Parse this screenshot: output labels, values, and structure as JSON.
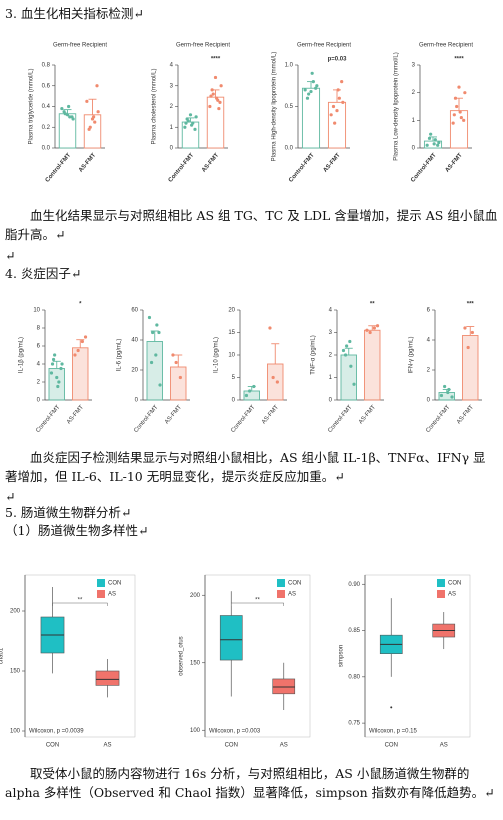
{
  "document": {
    "blocks": [
      "3. 血生化相关指标检测↵",
      "血生化结果显示与对照组相比 AS 组 TG、TC 及 LDL 含量增加，提示 AS 组小鼠血脂升高。↵",
      "↵",
      "4. 炎症因子↵",
      "血炎症因子检测结果显示与对照组小鼠相比，AS 组小鼠 IL-1β、TNFα、IFNγ 显著增加，但 IL-6、IL-10 无明显变化，提示炎症反应加重。↵",
      "↵",
      "5. 肠道微生物群分析↵",
      "（1）肠道微生物多样性↵",
      "取受体小鼠的肠内容物进行 16s 分析，与对照组相比，AS 小鼠肠道微生物群的 alpha 多样性（Observed 和 Chaol 指数）显著降低，simpson 指数亦有降低趋势。↵"
    ]
  },
  "chart_data": [
    {
      "type": "bar",
      "title": "Germ-free Recipient",
      "ylabel": "Plasma triglyceride (mmol/L)",
      "categories": [
        "Control-FMT",
        "AS-FMT"
      ],
      "colors": [
        "#5fb8a0",
        "#f08a6e"
      ],
      "values": [
        0.33,
        0.32
      ],
      "errors": [
        0.04,
        0.15
      ],
      "points": [
        [
          0.38,
          0.3,
          0.33,
          0.28,
          0.4,
          0.35,
          0.3,
          0.32
        ],
        [
          0.45,
          0.25,
          0.2,
          0.35,
          0.3,
          0.18,
          0.6,
          0.28
        ]
      ],
      "ylim": [
        0,
        0.8
      ],
      "yticks": [
        {
          "value": 0,
          "label": "0.0"
        },
        0.2,
        0.4,
        0.6,
        0.8
      ]
    },
    {
      "type": "bar",
      "title": "Germ-free Recipient",
      "ylabel": "Plasma cholesterol (mmol/L)",
      "categories": [
        "Control-FMT",
        "AS-FMT"
      ],
      "colors": [
        "#5fb8a0",
        "#f08a6e"
      ],
      "values": [
        1.25,
        2.45
      ],
      "errors": [
        0.2,
        0.35
      ],
      "points": [
        [
          1.0,
          1.2,
          1.3,
          1.5,
          1.1,
          1.4,
          0.9,
          1.6,
          1.2
        ],
        [
          2.0,
          2.3,
          2.6,
          3.0,
          2.4,
          2.8,
          2.2,
          3.4,
          2.5,
          1.9
        ]
      ],
      "annotation": "****",
      "ylim": [
        0,
        4
      ],
      "yticks": [
        0,
        1,
        2,
        3,
        4
      ]
    },
    {
      "type": "bar",
      "title": "Germ-free Recipient",
      "ylabel": "Plasma High-density lipoprotein (mmol/L)",
      "categories": [
        "Control-FMT",
        "AS-FMT"
      ],
      "colors": [
        "#5fb8a0",
        "#f08a6e"
      ],
      "values": [
        0.72,
        0.55
      ],
      "errors": [
        0.08,
        0.15
      ],
      "points": [
        [
          0.7,
          0.8,
          0.65,
          0.75,
          0.9,
          0.6,
          0.72,
          0.68
        ],
        [
          0.4,
          0.6,
          0.3,
          0.55,
          0.7,
          0.5,
          0.8,
          0.45
        ]
      ],
      "annotation": "p=0.03",
      "ylim": [
        0,
        1
      ],
      "yticks": [
        {
          "value": 0,
          "label": "0.0"
        },
        0.5,
        {
          "value": 1,
          "label": "1.0"
        }
      ]
    },
    {
      "type": "bar",
      "title": "Germ-free Recipient",
      "ylabel": "Plasma Low-density lipoprotein (mmol/L)",
      "categories": [
        "Control-FMT",
        "AS-FMT"
      ],
      "colors": [
        "#5fb8a0",
        "#f08a6e"
      ],
      "values": [
        0.25,
        1.35
      ],
      "errors": [
        0.15,
        0.45
      ],
      "points": [
        [
          0.1,
          0.3,
          0.5,
          0.2,
          0.15,
          0.35,
          0.1
        ],
        [
          0.9,
          1.1,
          1.5,
          2.0,
          1.3,
          1.8,
          1.0,
          2.2,
          1.2
        ]
      ],
      "annotation": "****",
      "ylim": [
        0,
        3
      ],
      "yticks": [
        0,
        1,
        2,
        3
      ]
    },
    {
      "type": "bar",
      "ylabel": "IL-1β (pg/mL)",
      "categories": [
        "Control-FMT",
        "AS-FMT"
      ],
      "colors": [
        "#5fb8a0",
        "#f08a6e"
      ],
      "values": [
        3.5,
        5.8
      ],
      "errors": [
        0.8,
        0.9
      ],
      "points": [
        [
          3,
          2,
          5,
          4,
          1.5,
          4.5,
          3.5,
          2.5,
          4
        ],
        [
          5,
          6.5,
          5.5,
          7
        ]
      ],
      "annotation": "*",
      "ylim": [
        0,
        10
      ],
      "yticks": [
        0,
        2,
        4,
        6,
        8,
        10
      ]
    },
    {
      "type": "bar",
      "ylabel": "IL-6 (pg/mL)",
      "categories": [
        "Control-FMT",
        "AS-FMT"
      ],
      "colors": [
        "#5fb8a0",
        "#f08a6e"
      ],
      "values": [
        39,
        22
      ],
      "errors": [
        7,
        8
      ],
      "points": [
        [
          55,
          50,
          45,
          10,
          30,
          25,
          45
        ],
        [
          30,
          15,
          25
        ]
      ],
      "ylim": [
        0,
        60
      ],
      "yticks": [
        0,
        20,
        40,
        60
      ]
    },
    {
      "type": "bar",
      "ylabel": "IL-10 (pg/mL)",
      "categories": [
        "Control-FMT",
        "AS-FMT"
      ],
      "colors": [
        "#5fb8a0",
        "#f08a6e"
      ],
      "values": [
        2,
        8
      ],
      "errors": [
        1,
        4.5
      ],
      "points": [
        [
          1,
          3,
          2
        ],
        [
          16,
          4,
          5
        ]
      ],
      "ylim": [
        0,
        20
      ],
      "yticks": [
        0,
        5,
        10,
        15,
        20
      ]
    },
    {
      "type": "bar",
      "ylabel": "TNF-α (pg/mL)",
      "categories": [
        "Control-FMT",
        "AS-FMT"
      ],
      "colors": [
        "#5fb8a0",
        "#f08a6e"
      ],
      "values": [
        2.0,
        3.1
      ],
      "errors": [
        0.3,
        0.2
      ],
      "points": [
        [
          2.2,
          1.5,
          2.4,
          0.7,
          2.6,
          2.0
        ],
        [
          3.1,
          3.2,
          3.0,
          3.3
        ]
      ],
      "annotation": "**",
      "ylim": [
        0,
        4
      ],
      "yticks": [
        0,
        1,
        2,
        3,
        4
      ]
    },
    {
      "type": "bar",
      "ylabel": "IFN-γ (pg/mL)",
      "categories": [
        "Control-FMT",
        "AS-FMT"
      ],
      "colors": [
        "#5fb8a0",
        "#f08a6e"
      ],
      "values": [
        0.5,
        4.3
      ],
      "errors": [
        0.2,
        0.6
      ],
      "points": [
        [
          0.3,
          0.7,
          0.9,
          0.2,
          0.5
        ],
        [
          4.8,
          4.5,
          3.5
        ]
      ],
      "annotation": "***",
      "ylim": [
        0,
        6
      ],
      "yticks": [
        0,
        2,
        4,
        6
      ]
    },
    {
      "type": "box",
      "ylabel": "chao1",
      "categories": [
        "CON",
        "AS"
      ],
      "colors": [
        "#1fbfc4",
        "#f0736b"
      ],
      "boxes": [
        {
          "min": 148,
          "q1": 165,
          "median": 180,
          "q3": 195,
          "max": 220,
          "outliers": []
        },
        {
          "min": 128,
          "q1": 138,
          "median": 143,
          "q3": 150,
          "max": 160,
          "outliers": []
        }
      ],
      "annotation": "Wilcoxon, p =0.0039",
      "significance": "**",
      "ylim": [
        95,
        230
      ],
      "yticks": [
        100,
        150,
        200
      ]
    },
    {
      "type": "box",
      "ylabel": "observed_otus",
      "categories": [
        "CON",
        "AS"
      ],
      "colors": [
        "#1fbfc4",
        "#f0736b"
      ],
      "boxes": [
        {
          "min": 125,
          "q1": 152,
          "median": 167,
          "q3": 185,
          "max": 203,
          "outliers": []
        },
        {
          "min": 115,
          "q1": 127,
          "median": 132,
          "q3": 138,
          "max": 150,
          "outliers": []
        }
      ],
      "annotation": "Wilcoxon, p =0.003",
      "significance": "**",
      "ylim": [
        95,
        215
      ],
      "yticks": [
        100,
        150,
        200
      ]
    },
    {
      "type": "box",
      "ylabel": "simpson",
      "categories": [
        "CON",
        "AS"
      ],
      "colors": [
        "#1fbfc4",
        "#f0736b"
      ],
      "boxes": [
        {
          "min": 0.8,
          "q1": 0.825,
          "median": 0.835,
          "q3": 0.845,
          "max": 0.885,
          "outliers": [
            0.767
          ]
        },
        {
          "min": 0.83,
          "q1": 0.843,
          "median": 0.85,
          "q3": 0.857,
          "max": 0.87,
          "outliers": []
        }
      ],
      "annotation": "Wilcoxon, p =0.15",
      "ylim": [
        0.735,
        0.91
      ],
      "yticks": [
        0.75,
        {
          "value": 0.8,
          "label": "0.80"
        },
        0.85,
        {
          "value": 0.9,
          "label": "0.90"
        }
      ]
    }
  ]
}
